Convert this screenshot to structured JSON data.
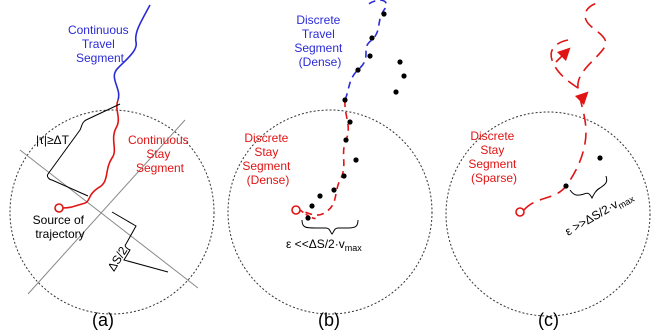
{
  "panels": [
    {
      "caption": "(a)",
      "travel_label": [
        "Continuous",
        "Travel",
        "Segment"
      ],
      "stay_label": [
        "Continuous",
        "Stay",
        "Segment"
      ],
      "tau_label": "|τ|≥ΔT",
      "source_label": [
        "Source of",
        "trajectory"
      ],
      "delta_label": "ΔS/2"
    },
    {
      "caption": "(b)",
      "travel_label": [
        "Discrete",
        "Travel",
        "Segment",
        "(Dense)"
      ],
      "stay_label": [
        "Discrete",
        "Stay",
        "Segment",
        "(Dense)"
      ],
      "epsilon_label": "ε <<ΔS/2·v",
      "epsilon_sub": "max"
    },
    {
      "caption": "(c)",
      "stay_label": [
        "Discrete",
        "Stay",
        "Segment",
        "(Sparse)"
      ],
      "epsilon_label": "ε >>ΔS/2·v",
      "epsilon_sub": "max"
    }
  ],
  "colors": {
    "travel": "#2b2bd6",
    "stay": "#e01414",
    "circle": "#333333",
    "marker": "#000000"
  }
}
